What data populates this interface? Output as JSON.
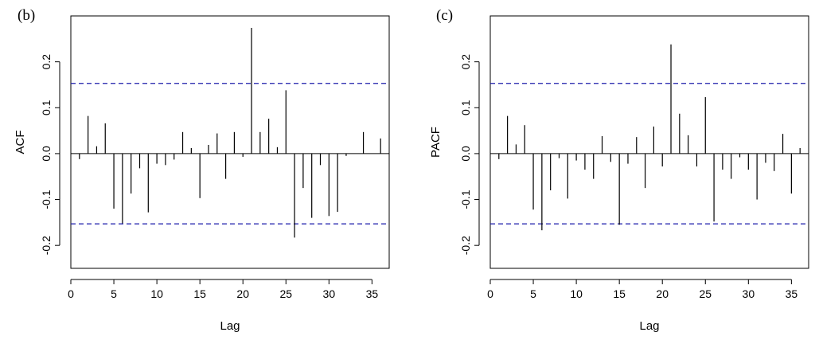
{
  "chart_data": [
    {
      "type": "bar",
      "panel_label": "(b)",
      "ylabel": "ACF",
      "xlabel": "Lag",
      "xlim": [
        0,
        37
      ],
      "ylim": [
        -0.25,
        0.3
      ],
      "xticks": [
        "0",
        "5",
        "10",
        "15",
        "20",
        "25",
        "30",
        "35"
      ],
      "yticks": [
        "-0.2",
        "-0.1",
        "0.0",
        "0.1",
        "0.2"
      ],
      "conf_bound": 0.153,
      "bound_color": "#1c1cab",
      "lags": [
        1,
        2,
        3,
        4,
        5,
        6,
        7,
        8,
        9,
        10,
        11,
        12,
        13,
        14,
        15,
        16,
        17,
        18,
        19,
        20,
        21,
        22,
        23,
        24,
        25,
        26,
        27,
        28,
        29,
        30,
        31,
        32,
        33,
        34,
        35,
        36
      ],
      "values": [
        -0.012,
        0.082,
        0.016,
        0.066,
        -0.12,
        -0.152,
        -0.087,
        -0.032,
        -0.128,
        -0.022,
        -0.025,
        -0.013,
        0.047,
        0.012,
        -0.097,
        0.019,
        0.044,
        -0.055,
        0.047,
        -0.007,
        0.274,
        0.047,
        0.076,
        0.014,
        0.138,
        -0.183,
        -0.075,
        -0.14,
        -0.025,
        -0.136,
        -0.127,
        -0.005,
        0.0,
        0.047,
        0.0,
        0.033
      ]
    },
    {
      "type": "bar",
      "panel_label": "(c)",
      "ylabel": "PACF",
      "xlabel": "Lag",
      "xlim": [
        0,
        37
      ],
      "ylim": [
        -0.25,
        0.3
      ],
      "xticks": [
        "0",
        "5",
        "10",
        "15",
        "20",
        "25",
        "30",
        "35"
      ],
      "yticks": [
        "-0.2",
        "-0.1",
        "0.0",
        "0.1",
        "0.2"
      ],
      "conf_bound": 0.153,
      "bound_color": "#1c1cab",
      "lags": [
        1,
        2,
        3,
        4,
        5,
        6,
        7,
        8,
        9,
        10,
        11,
        12,
        13,
        14,
        15,
        16,
        17,
        18,
        19,
        20,
        21,
        22,
        23,
        24,
        25,
        26,
        27,
        28,
        29,
        30,
        31,
        32,
        33,
        34,
        35,
        36
      ],
      "values": [
        -0.012,
        0.082,
        0.02,
        0.062,
        -0.122,
        -0.167,
        -0.08,
        -0.01,
        -0.098,
        -0.015,
        -0.035,
        -0.055,
        0.038,
        -0.018,
        -0.155,
        -0.022,
        0.036,
        -0.075,
        0.059,
        -0.028,
        0.238,
        0.087,
        0.04,
        -0.028,
        0.123,
        -0.148,
        -0.035,
        -0.055,
        -0.008,
        -0.035,
        -0.1,
        -0.02,
        -0.038,
        0.043,
        -0.087,
        0.012
      ]
    }
  ]
}
